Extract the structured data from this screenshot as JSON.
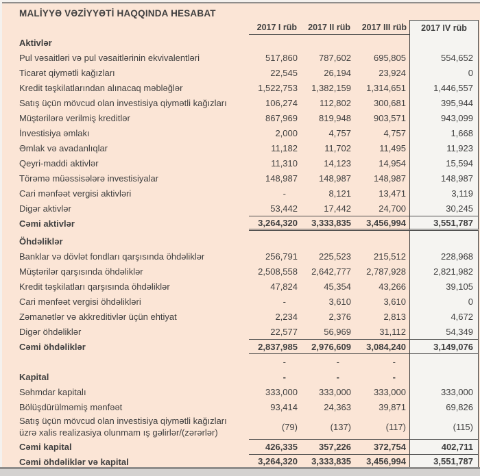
{
  "title": "MALİYYƏ VƏZİYYƏTİ HAQQINDA HESABAT",
  "colors": {
    "page_background": "#fbe5d6",
    "highlight_column_background": "#f5f4f1",
    "text": "#3f3f3f",
    "rule_lines": "#4a4a4a",
    "edge_chrome": "#d4d2d0"
  },
  "table": {
    "columns": [
      "2017 I rüb",
      "2017 II rüb",
      "2017 III rüb",
      "2017 IV rüb"
    ],
    "rows": [
      {
        "label": "Aktivlər",
        "bold": true,
        "values": [
          "",
          "",
          "",
          ""
        ]
      },
      {
        "label": "Pul vəsaitləri və pul vəsaitlərinin ekvivalentləri",
        "values": [
          "517,860",
          "787,602",
          "695,805",
          "554,652"
        ]
      },
      {
        "label": "Ticarət qiymətli kağızları",
        "values": [
          "22,545",
          "26,194",
          "23,924",
          "0"
        ]
      },
      {
        "label": "Kredit təşkilatlarından alınacaq məbləğlər",
        "values": [
          "1,522,753",
          "1,382,159",
          "1,314,651",
          "1,446,557"
        ]
      },
      {
        "label": "Satış üçün mövcud olan investisiya qiymətli kağızları",
        "values": [
          "106,274",
          "112,802",
          "300,681",
          "395,944"
        ]
      },
      {
        "label": "Müştərilərə verilmiş kreditlər",
        "values": [
          "867,969",
          "819,948",
          "903,571",
          "943,099"
        ]
      },
      {
        "label": "İnvestisiya əmlakı",
        "values": [
          "2,000",
          "4,757",
          "4,757",
          "1,668"
        ]
      },
      {
        "label": "Əmlak və avadanlıqlar",
        "values": [
          "11,182",
          "11,702",
          "11,495",
          "11,923"
        ]
      },
      {
        "label": "Qeyri-maddi aktivlər",
        "values": [
          "11,310",
          "14,123",
          "14,954",
          "15,594"
        ]
      },
      {
        "label": "Törəmə müəssisələrə investisiyalar",
        "values": [
          "148,987",
          "148,987",
          "148,987",
          "148,987"
        ]
      },
      {
        "label": "Cari mənfəət vergisi aktivləri",
        "values": [
          "-",
          "8,121",
          "13,471",
          "3,119"
        ]
      },
      {
        "label": "Digər aktivlər",
        "values": [
          "53,442",
          "17,442",
          "24,700",
          "30,245"
        ]
      },
      {
        "label": "Cəmi aktivlər",
        "bold": true,
        "top": true,
        "bottom": "double",
        "values": [
          "3,264,320",
          "3,333,835",
          "3,456,994",
          "3,551,787"
        ]
      },
      {
        "gap": true,
        "label": "",
        "values": [
          "",
          "",
          "",
          ""
        ]
      },
      {
        "label": "Öhdəliklər",
        "bold": true,
        "values": [
          "",
          "",
          "",
          ""
        ]
      },
      {
        "label": "Banklar və dövlət fondları qarşısında öhdəliklər",
        "values": [
          "256,791",
          "225,523",
          "215,512",
          "228,968"
        ]
      },
      {
        "label": "Müştərilər qarşısında öhdəliklər",
        "values": [
          "2,508,558",
          "2,642,777",
          "2,787,928",
          "2,821,982"
        ]
      },
      {
        "label": "Kredit təşkilatları qarşısında öhdəliklər",
        "values": [
          "47,824",
          "45,354",
          "43,266",
          "39,105"
        ]
      },
      {
        "label": "Cari mənfəət vergisi öhdəlikləri",
        "values": [
          "-",
          "3,610",
          "3,610",
          "0"
        ]
      },
      {
        "label": "Zəmanətlər və akkreditivlər üçün ehtiyat",
        "values": [
          "2,234",
          "2,376",
          "2,813",
          "4,672"
        ]
      },
      {
        "label": "Digər öhdəliklər",
        "values": [
          "22,577",
          "56,969",
          "31,112",
          "54,349"
        ]
      },
      {
        "label": "Cəmi öhdəliklər",
        "bold": true,
        "top": true,
        "bottom": "single",
        "values": [
          "2,837,985",
          "2,976,609",
          "3,084,240",
          "3,149,076"
        ]
      },
      {
        "label": "",
        "values": [
          "-",
          "-",
          "-",
          ""
        ]
      },
      {
        "label": "Kapital",
        "bold": true,
        "values": [
          "-",
          "-",
          "-",
          ""
        ]
      },
      {
        "label": "Səhmdar kapitalı",
        "values": [
          "333,000",
          "333,000",
          "333,000",
          "333,000"
        ]
      },
      {
        "label": "Bölüşdürülməmiş mənfəət",
        "values": [
          "93,414",
          "24,363",
          "39,871",
          "69,826"
        ]
      },
      {
        "label": "Satış üçün mövcud olan investisiya qiymətli kağızları",
        "label2": "üzrə xalis realizasiya olunmam ış gəlirlər/(zərərlər)",
        "twoline": true,
        "values": [
          "(79)",
          "(137)",
          "(117)",
          "(115)"
        ]
      },
      {
        "label": "Cəmi kapital",
        "bold": true,
        "top": true,
        "values": [
          "426,335",
          "357,226",
          "372,754",
          "402,711"
        ]
      },
      {
        "label": "Cəmi öhdəliklər və kapital",
        "bold": true,
        "top": true,
        "bottom": "double",
        "last": true,
        "values": [
          "3,264,320",
          "3,333,835",
          "3,456,994",
          "3,551,787"
        ]
      }
    ]
  }
}
